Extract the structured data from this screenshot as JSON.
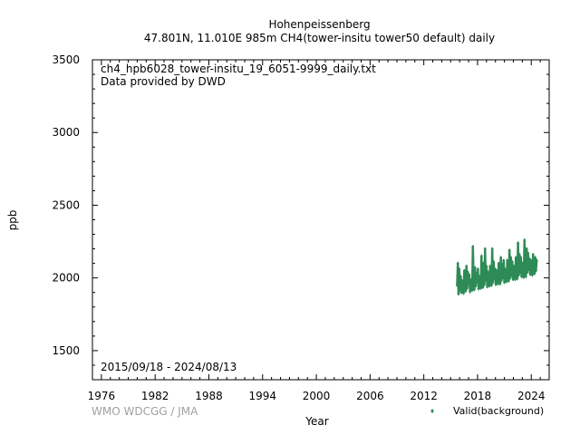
{
  "header": {
    "station": "Hohenpeissenberg",
    "subtitle": "47.801N, 11.010E 985m     CH4(tower-insitu tower50 default) daily"
  },
  "notes": {
    "file": "ch4_hpb6028_tower-insitu_19_6051-9999_daily.txt",
    "provider": "Data provided by DWD",
    "period": "2015/09/18 - 2024/08/13",
    "credit": "WMO WDCGG / JMA"
  },
  "chart_data": {
    "type": "scatter",
    "xlabel": "Year",
    "ylabel": "ppb",
    "xlim": [
      1975,
      2026
    ],
    "ylim": [
      1300,
      3500
    ],
    "x_ticks": [
      1976,
      1982,
      1988,
      1994,
      2000,
      2006,
      2012,
      2018,
      2024
    ],
    "y_ticks": [
      1500,
      2000,
      2500,
      3000,
      3500
    ],
    "grid": false,
    "legend_position": "bottom-right",
    "series": [
      {
        "name": "Valid(background)",
        "color": "#2e8b57",
        "marker": "diamond",
        "x": [
          2015.72,
          2015.8,
          2015.88,
          2015.96,
          2016.04,
          2016.12,
          2016.2,
          2016.28,
          2016.36,
          2016.44,
          2016.52,
          2016.6,
          2016.68,
          2016.76,
          2016.84,
          2016.92,
          2017.0,
          2017.08,
          2017.16,
          2017.24,
          2017.32,
          2017.4,
          2017.48,
          2017.56,
          2017.64,
          2017.72,
          2017.8,
          2017.88,
          2017.96,
          2018.04,
          2018.12,
          2018.2,
          2018.28,
          2018.36,
          2018.44,
          2018.52,
          2018.6,
          2018.68,
          2018.76,
          2018.84,
          2018.92,
          2019.0,
          2019.08,
          2019.16,
          2019.24,
          2019.32,
          2019.4,
          2019.48,
          2019.56,
          2019.64,
          2019.72,
          2019.8,
          2019.88,
          2019.96,
          2020.04,
          2020.12,
          2020.2,
          2020.28,
          2020.36,
          2020.44,
          2020.52,
          2020.6,
          2020.68,
          2020.76,
          2020.84,
          2020.92,
          2021.0,
          2021.08,
          2021.16,
          2021.24,
          2021.32,
          2021.4,
          2021.48,
          2021.56,
          2021.64,
          2021.72,
          2021.8,
          2021.88,
          2021.96,
          2022.04,
          2022.12,
          2022.2,
          2022.28,
          2022.36,
          2022.44,
          2022.52,
          2022.6,
          2022.68,
          2022.76,
          2022.84,
          2022.92,
          2023.0,
          2023.08,
          2023.16,
          2023.24,
          2023.32,
          2023.4,
          2023.48,
          2023.56,
          2023.64,
          2023.72,
          2023.8,
          2023.88,
          2023.96,
          2024.04,
          2024.12,
          2024.2,
          2024.28,
          2024.36,
          2024.44,
          2024.52,
          2024.61
        ],
        "y": [
          1950,
          2100,
          1890,
          2060,
          1920,
          2010,
          1900,
          1980,
          1940,
          1895,
          2050,
          1990,
          1910,
          2080,
          1930,
          2040,
          1960,
          2020,
          1905,
          1985,
          1950,
          1915,
          2215,
          2000,
          1920,
          2070,
          1945,
          2030,
          1975,
          2060,
          1925,
          2010,
          1960,
          1930,
          2150,
          1990,
          1935,
          2100,
          1955,
          2200,
          1985,
          2080,
          1940,
          2040,
          1965,
          1945,
          2080,
          2010,
          1950,
          2200,
          1970,
          2110,
          1995,
          2060,
          1955,
          2050,
          1975,
          1960,
          2100,
          2020,
          1960,
          2140,
          1985,
          2090,
          2005,
          2120,
          1970,
          2060,
          1990,
          1975,
          2120,
          2030,
          1980,
          2190,
          2000,
          2140,
          2020,
          2110,
          1990,
          2080,
          2000,
          1990,
          2140,
          2040,
          1995,
          2240,
          2020,
          2160,
          2040,
          2140,
          2010,
          2100,
          2020,
          2005,
          2260,
          2060,
          2010,
          2200,
          2040,
          2170,
          2060,
          2130,
          2025,
          2120,
          2035,
          2020,
          2160,
          2070,
          2030,
          2140,
          2050,
          2120
        ]
      }
    ]
  }
}
